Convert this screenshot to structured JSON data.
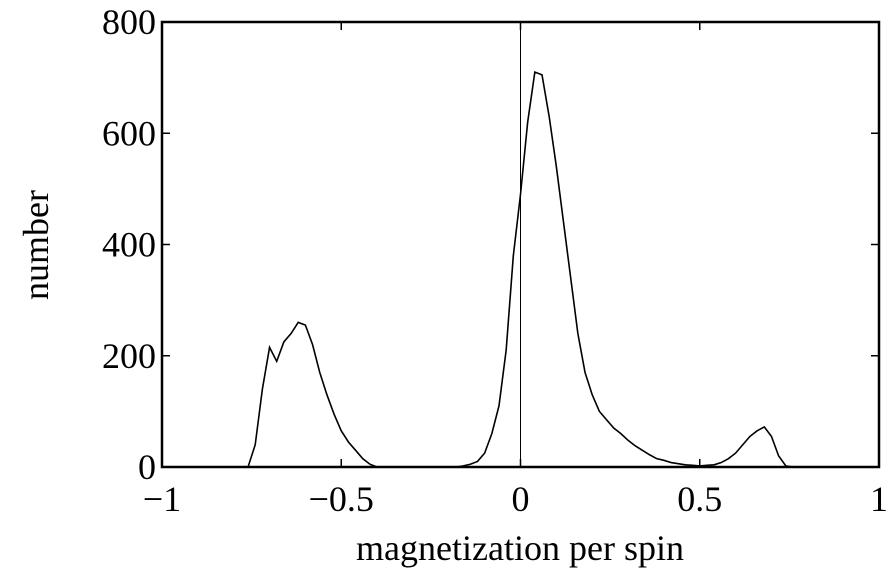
{
  "chart_data": {
    "type": "line",
    "x_label": "magnetization per spin",
    "y_label": "number",
    "x": [
      -1,
      -0.98,
      -0.96,
      -0.94,
      -0.92,
      -0.9,
      -0.88,
      -0.86,
      -0.84,
      -0.82,
      -0.8,
      -0.78,
      -0.76,
      -0.74,
      -0.72,
      -0.7,
      -0.68,
      -0.66,
      -0.64,
      -0.62,
      -0.6,
      -0.58,
      -0.56,
      -0.54,
      -0.52,
      -0.5,
      -0.48,
      -0.46,
      -0.44,
      -0.42,
      -0.4,
      -0.38,
      -0.36,
      -0.34,
      -0.32,
      -0.3,
      -0.28,
      -0.26,
      -0.24,
      -0.22,
      -0.2,
      -0.18,
      -0.16,
      -0.14,
      -0.12,
      -0.1,
      -0.08,
      -0.06,
      -0.04,
      -0.02,
      0,
      0.02,
      0.04,
      0.06,
      0.08,
      0.1,
      0.12,
      0.14,
      0.16,
      0.18,
      0.2,
      0.22,
      0.24,
      0.26,
      0.28,
      0.3,
      0.32,
      0.34,
      0.36,
      0.38,
      0.4,
      0.42,
      0.44,
      0.46,
      0.48,
      0.5,
      0.52,
      0.54,
      0.56,
      0.58,
      0.6,
      0.62,
      0.64,
      0.66,
      0.68,
      0.7,
      0.72,
      0.74,
      0.76,
      0.78,
      0.8,
      0.82,
      0.84,
      0.86,
      0.88,
      0.9,
      0.92,
      0.94,
      0.96,
      0.98,
      1
    ],
    "series": [
      {
        "color": "#000000",
        "values": [
          0,
          0,
          0,
          0,
          0,
          0,
          0,
          0,
          0,
          0,
          0,
          0,
          0,
          40,
          140,
          215,
          190,
          225,
          240,
          260,
          255,
          220,
          170,
          130,
          95,
          65,
          45,
          30,
          15,
          5,
          0,
          0,
          0,
          0,
          0,
          0,
          0,
          0,
          0,
          0,
          0,
          0,
          2,
          5,
          10,
          25,
          60,
          110,
          210,
          380,
          490,
          620,
          710,
          705,
          630,
          540,
          440,
          340,
          240,
          170,
          130,
          100,
          85,
          70,
          60,
          48,
          38,
          30,
          22,
          15,
          12,
          8,
          6,
          4,
          3,
          2,
          3,
          4,
          8,
          15,
          25,
          40,
          55,
          65,
          72,
          55,
          20,
          2,
          0,
          0,
          0,
          0,
          0,
          0,
          0,
          0,
          0,
          0,
          0,
          0,
          0
        ]
      }
    ],
    "xlim": [
      -1,
      1
    ],
    "xticks": [
      {
        "value": -1,
        "label": "−1"
      },
      {
        "value": -0.5,
        "label": "−0.5"
      },
      0,
      0.5,
      1
    ],
    "ylim": [
      0,
      800
    ],
    "yticks": [
      0,
      200,
      400,
      600,
      800
    ]
  }
}
